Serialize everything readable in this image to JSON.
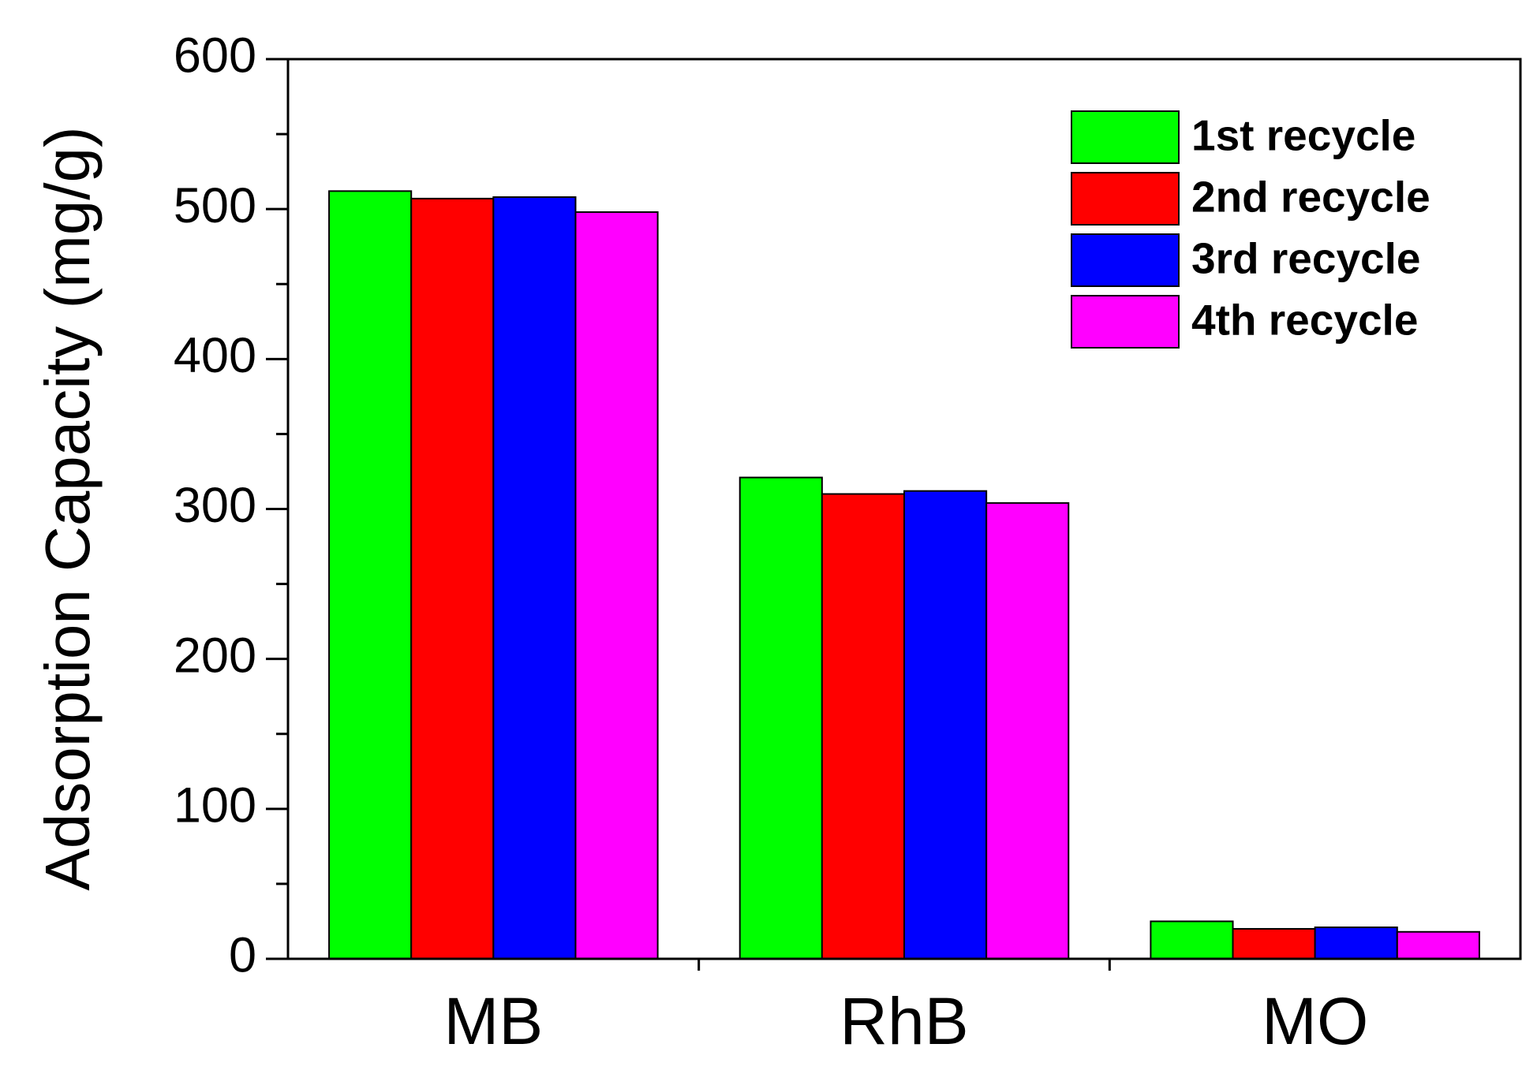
{
  "chart_data": {
    "type": "bar",
    "y_label": "Adsorption Capacity (mg/g)",
    "categories": [
      "MB",
      "RhB",
      "MO"
    ],
    "series": [
      {
        "name": "1st recycle",
        "color": "#00ff00",
        "values": [
          512,
          321,
          25
        ]
      },
      {
        "name": "2nd recycle",
        "color": "#ff0000",
        "values": [
          507,
          310,
          20
        ]
      },
      {
        "name": "3rd recycle",
        "color": "#0000ff",
        "values": [
          508,
          312,
          21
        ]
      },
      {
        "name": "4th recycle",
        "color": "#ff00ff",
        "values": [
          498,
          304,
          18
        ]
      }
    ],
    "ylim": [
      0,
      600
    ],
    "yticks": [
      0,
      100,
      200,
      300,
      400,
      500,
      600
    ],
    "legend": "upper right"
  }
}
